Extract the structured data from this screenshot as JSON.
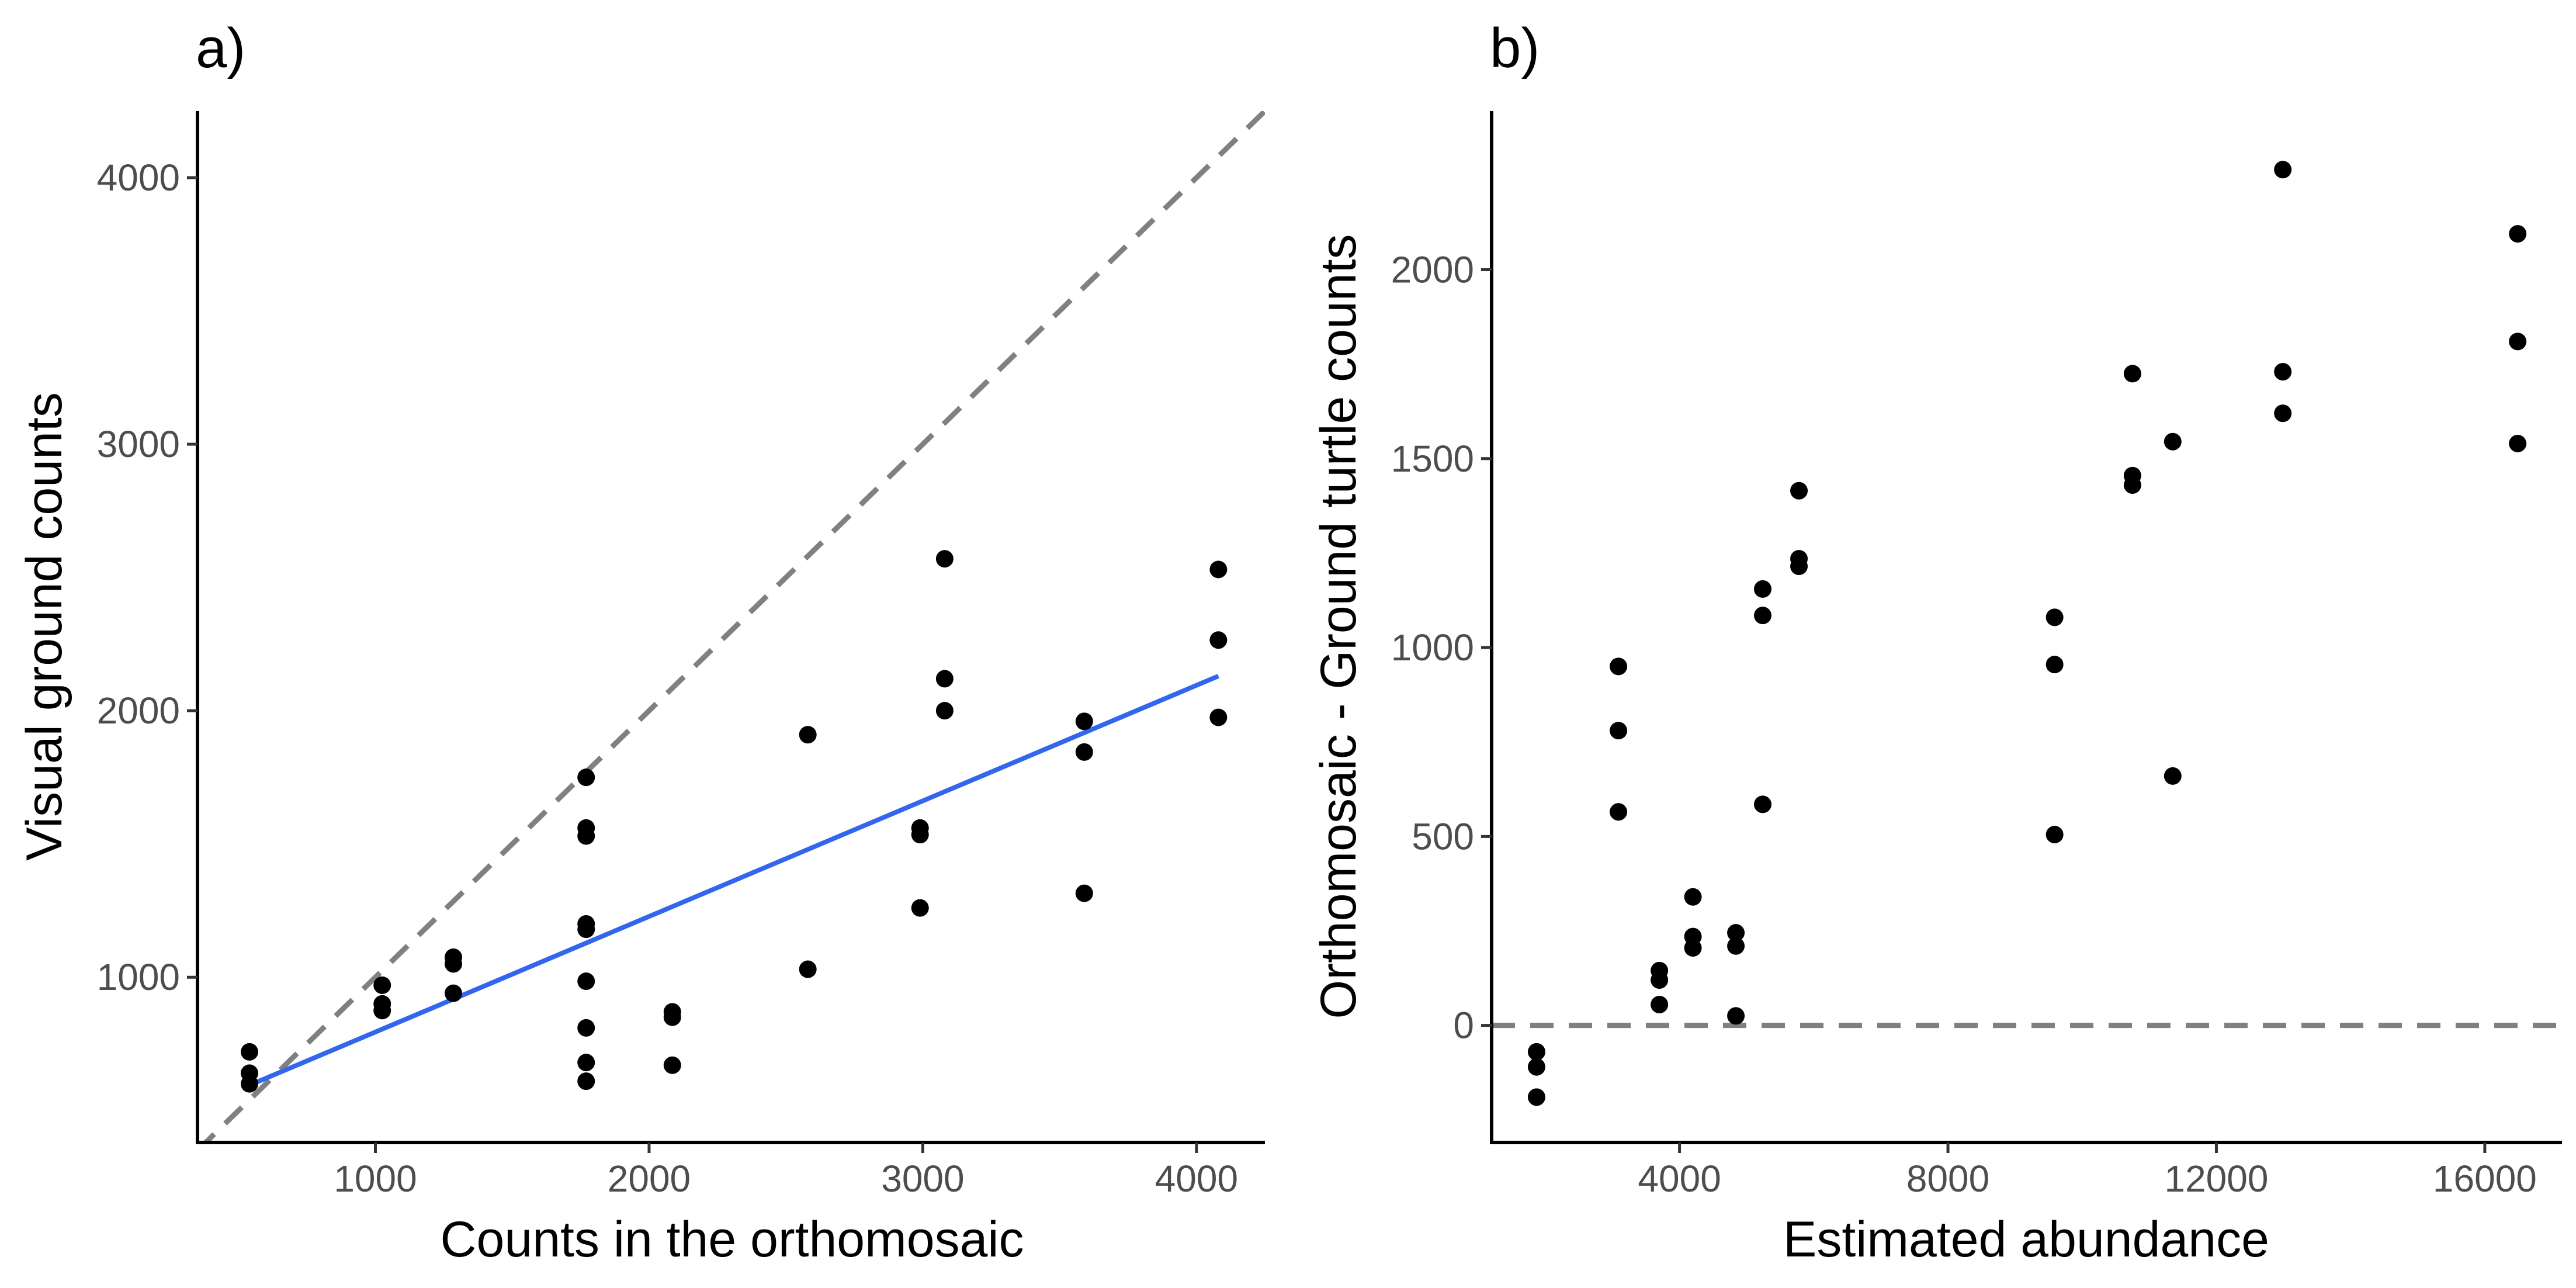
{
  "chart_data": [
    {
      "type": "scatter",
      "panel_label": "a)",
      "xlabel": "Counts in the orthomosaic",
      "ylabel": "Visual ground counts",
      "xlim": [
        350,
        4250
      ],
      "ylim": [
        380,
        4250
      ],
      "xticks": [
        1000,
        2000,
        3000,
        4000
      ],
      "yticks": [
        1000,
        2000,
        3000,
        4000
      ],
      "grid": false,
      "points": [
        [
          540,
          720
        ],
        [
          540,
          640
        ],
        [
          540,
          600
        ],
        [
          1025,
          970
        ],
        [
          1025,
          900
        ],
        [
          1025,
          875
        ],
        [
          1285,
          1075
        ],
        [
          1285,
          1050
        ],
        [
          1285,
          940
        ],
        [
          1770,
          1750
        ],
        [
          1770,
          1560
        ],
        [
          1770,
          1530
        ],
        [
          1770,
          1200
        ],
        [
          1770,
          1180
        ],
        [
          1770,
          985
        ],
        [
          1770,
          810
        ],
        [
          1770,
          680
        ],
        [
          1770,
          610
        ],
        [
          2085,
          870
        ],
        [
          2085,
          850
        ],
        [
          2085,
          670
        ],
        [
          2580,
          1910
        ],
        [
          2580,
          1030
        ],
        [
          2990,
          1560
        ],
        [
          2990,
          1535
        ],
        [
          2990,
          1260
        ],
        [
          3080,
          2570
        ],
        [
          3080,
          2120
        ],
        [
          3080,
          2000
        ],
        [
          3590,
          1960
        ],
        [
          3590,
          1845
        ],
        [
          3590,
          1315
        ],
        [
          4080,
          2530
        ],
        [
          4080,
          2265
        ],
        [
          4080,
          1975
        ]
      ],
      "point_color": "#000000",
      "reference_lines": [
        {
          "kind": "identity",
          "style": "dashed",
          "color": "#808080",
          "from": [
            350,
            350
          ],
          "to": [
            4250,
            4250
          ]
        },
        {
          "kind": "regression",
          "style": "solid",
          "color": "#3366ee",
          "from": [
            540,
            595
          ],
          "to": [
            4080,
            2130
          ]
        }
      ]
    },
    {
      "type": "scatter",
      "panel_label": "b)",
      "xlabel": "Estimated abundance",
      "ylabel": "Orthomosaic - Ground turtle counts",
      "xlim": [
        1200,
        17150
      ],
      "ylim": [
        -310,
        2420
      ],
      "xticks": [
        4000,
        8000,
        12000,
        16000
      ],
      "yticks": [
        0,
        500,
        1000,
        1500,
        2000
      ],
      "grid": false,
      "points": [
        [
          1870,
          -70
        ],
        [
          1870,
          -110
        ],
        [
          1870,
          -190
        ],
        [
          3090,
          950
        ],
        [
          3090,
          780
        ],
        [
          3090,
          565
        ],
        [
          3700,
          145
        ],
        [
          3700,
          120
        ],
        [
          3700,
          55
        ],
        [
          4200,
          340
        ],
        [
          4200,
          235
        ],
        [
          4200,
          205
        ],
        [
          4840,
          245
        ],
        [
          4840,
          210
        ],
        [
          4840,
          25
        ],
        [
          5240,
          1155
        ],
        [
          5240,
          1085
        ],
        [
          5240,
          585
        ],
        [
          5780,
          1415
        ],
        [
          5780,
          1235
        ],
        [
          5780,
          1215
        ],
        [
          9590,
          1080
        ],
        [
          9590,
          955
        ],
        [
          9590,
          505
        ],
        [
          10750,
          1725
        ],
        [
          10750,
          1455
        ],
        [
          10750,
          1430
        ],
        [
          11350,
          1545
        ],
        [
          11350,
          660
        ],
        [
          12990,
          2265
        ],
        [
          12990,
          1730
        ],
        [
          12990,
          1620
        ],
        [
          16490,
          2095
        ],
        [
          16490,
          1810
        ],
        [
          16490,
          1540
        ]
      ],
      "point_color": "#000000",
      "reference_lines": [
        {
          "kind": "zero",
          "style": "dashed",
          "color": "#808080",
          "from": [
            1200,
            0
          ],
          "to": [
            17150,
            0
          ]
        }
      ]
    }
  ]
}
